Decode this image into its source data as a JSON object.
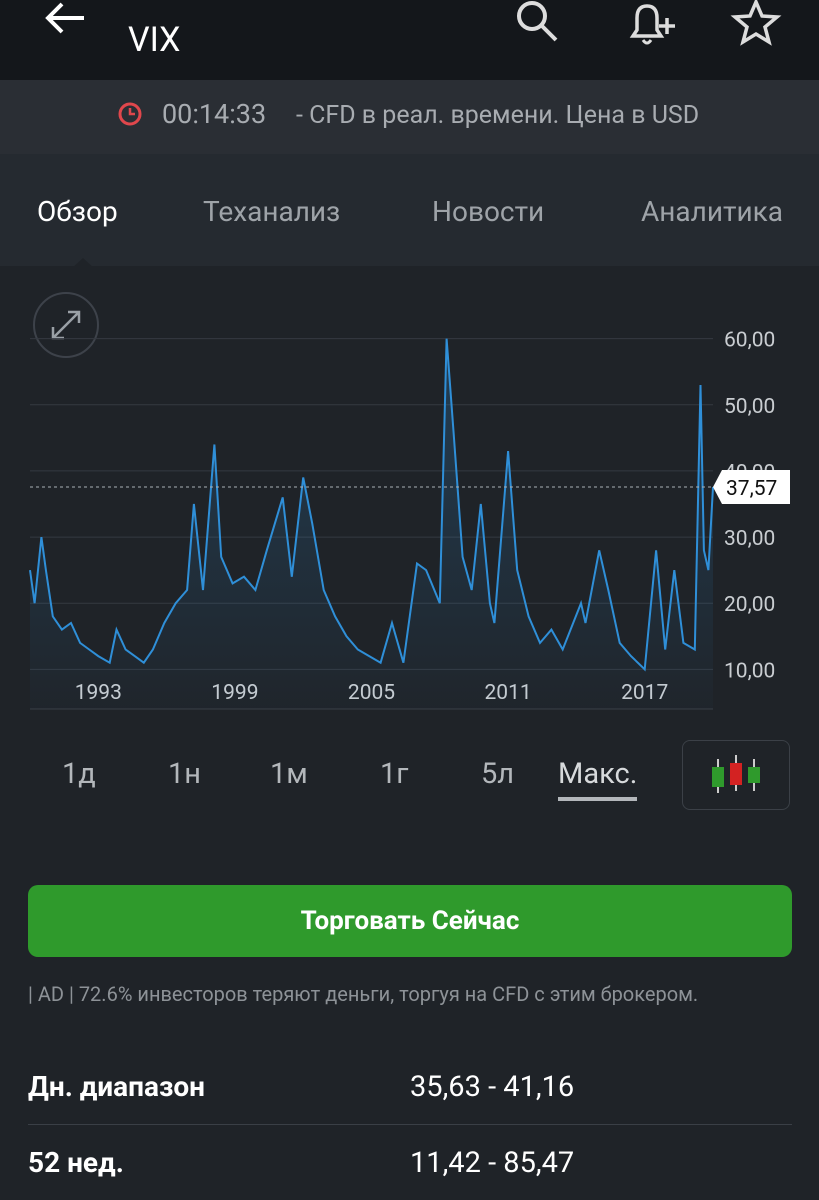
{
  "header": {
    "title": "VIX"
  },
  "status": {
    "time": "00:14:33",
    "text": "- CFD в реал. времени. Цена в USD"
  },
  "tabs": [
    "Обзор",
    "Теханализ",
    "Новости",
    "Аналитика"
  ],
  "active_tab": 0,
  "ranges": [
    "1д",
    "1н",
    "1м",
    "1г",
    "5л",
    "Макс."
  ],
  "active_range": 5,
  "trade_button": "Торговать Сейчас",
  "disclaimer": "| AD | 72.6% инвесторов теряют деньги, торгуя на CFD с этим брокером.",
  "stats": [
    {
      "label": "Дн. диапазон",
      "value": "35,63 - 41,16"
    },
    {
      "label": "52 нед.",
      "value": "11,42 - 85,47"
    }
  ],
  "chart_data": {
    "type": "line",
    "x": [
      1990.0,
      1990.2,
      1990.5,
      1990.7,
      1991.0,
      1991.4,
      1991.8,
      1992.2,
      1992.6,
      1993.0,
      1993.5,
      1993.8,
      1994.2,
      1994.6,
      1995.0,
      1995.4,
      1995.9,
      1996.4,
      1996.9,
      1997.2,
      1997.6,
      1998.1,
      1998.4,
      1998.9,
      1999.4,
      1999.9,
      2000.4,
      2001.1,
      2001.5,
      2002.0,
      2002.4,
      2002.9,
      2003.4,
      2003.9,
      2004.4,
      2004.9,
      2005.4,
      2005.9,
      2006.4,
      2007.0,
      2007.4,
      2008.0,
      2008.3,
      2008.6,
      2009.0,
      2009.4,
      2009.8,
      2010.2,
      2010.4,
      2011.0,
      2011.4,
      2011.9,
      2012.4,
      2012.9,
      2013.4,
      2014.2,
      2014.4,
      2015.0,
      2015.4,
      2015.9,
      2016.4,
      2017.0,
      2017.5,
      2017.9,
      2018.3,
      2018.7,
      2019.2,
      2019.45,
      2019.6,
      2019.8,
      2020.0
    ],
    "series": [
      {
        "name": "VIX",
        "color": "#2f8fd8",
        "values": [
          25,
          20,
          30,
          25,
          18,
          16,
          17,
          14,
          13,
          12,
          11,
          16,
          13,
          12,
          11,
          13,
          17,
          20,
          22,
          35,
          22,
          44,
          27,
          23,
          24,
          22,
          28,
          36,
          24,
          39,
          32,
          22,
          18,
          15,
          13,
          12,
          11,
          17,
          11,
          26,
          25,
          20,
          60,
          46,
          27,
          22,
          35,
          20,
          17,
          43,
          25,
          18,
          14,
          16,
          13,
          20,
          17,
          28,
          22,
          14,
          12,
          10,
          28,
          13,
          25,
          14,
          13,
          53,
          28,
          25,
          37.57
        ]
      }
    ],
    "xlim": [
      1990,
      2020
    ],
    "ylim": [
      4,
      66
    ],
    "xticks": [
      1993,
      1999,
      2005,
      2011,
      2017
    ],
    "yticks": [
      {
        "value": 10,
        "label": "10,00"
      },
      {
        "value": 20,
        "label": "20,00"
      },
      {
        "value": 30,
        "label": "30,00"
      },
      {
        "value": 40,
        "label": "40,00"
      },
      {
        "value": 50,
        "label": "50,00"
      },
      {
        "value": 60,
        "label": "60,00"
      }
    ],
    "last_price": {
      "value": 37.57,
      "label": "37,57"
    },
    "grid": true
  }
}
